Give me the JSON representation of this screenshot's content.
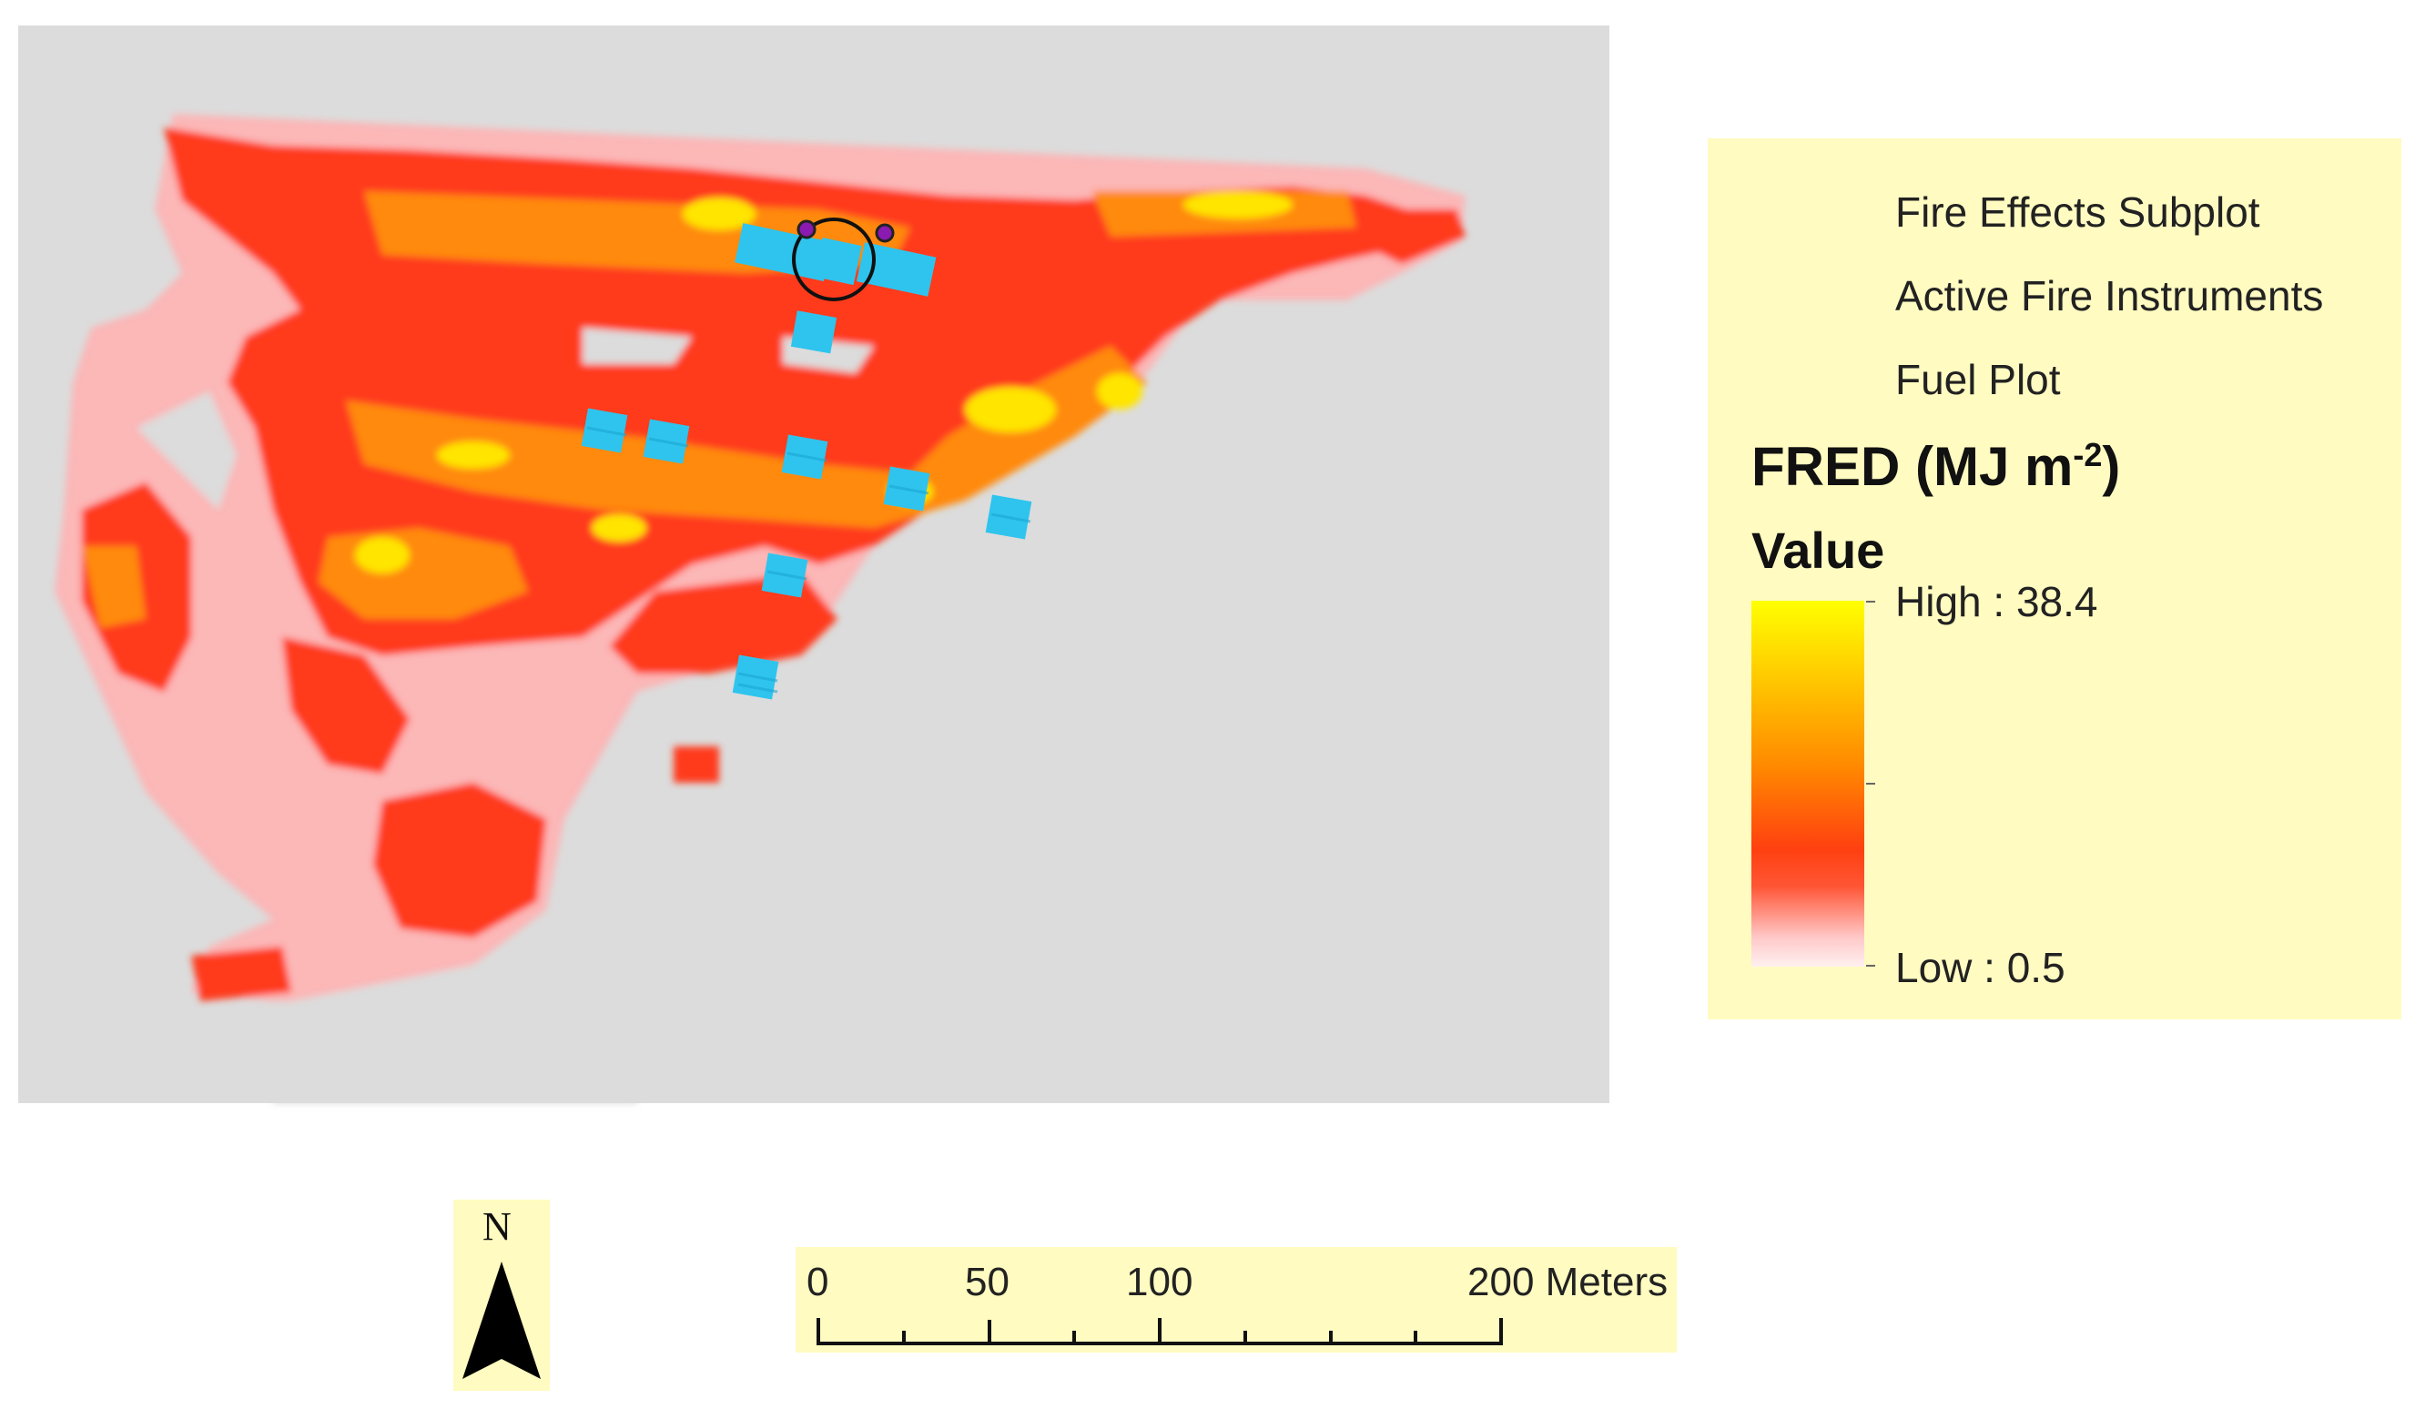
{
  "colors": {
    "map_background": "#dcdcdc",
    "legend_background": "#fffbc1",
    "subplot_color": "#2ec4ee",
    "instrument_color": "#8a1ab0",
    "ramp_high": "#ffff00",
    "ramp_mid": "#ff5a00",
    "ramp_low": "#ffffff"
  },
  "legend": {
    "items": [
      {
        "label": "Fire Effects Subplot",
        "icon": "cyan-square-icon"
      },
      {
        "label": "Active Fire Instruments",
        "icon": "purple-dot-icon"
      },
      {
        "label": "Fuel Plot",
        "icon": "open-circle-icon"
      }
    ],
    "title_main": "FRED (MJ m",
    "title_sup": "-2",
    "title_close": ")",
    "value_label": "Value",
    "high_label": "High : 38.4",
    "low_label": "Low : 0.5",
    "value_range": [
      0.5,
      38.4
    ]
  },
  "north_arrow": {
    "label": "N"
  },
  "scale_bar": {
    "labels": [
      "0",
      "50",
      "100",
      "200 Meters"
    ],
    "values": [
      0,
      50,
      100,
      200
    ],
    "unit": "Meters"
  }
}
